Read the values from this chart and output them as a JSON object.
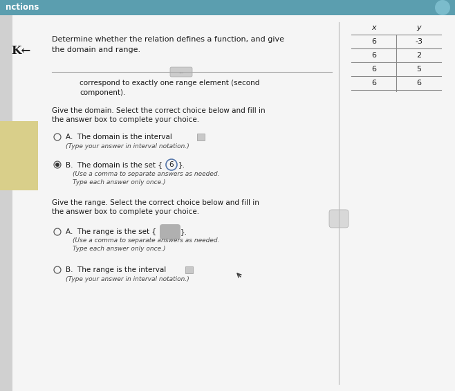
{
  "title_bar_color": "#5b9eaf",
  "bg_color": "#e8e8e8",
  "main_bg": "#f5f5f5",
  "header_text_1": "Determine whether the relation defines a function, and give",
  "header_text_2": "the domain and range.",
  "arrow_symbol": "K←",
  "table": {
    "headers": [
      "x",
      "y"
    ],
    "rows": [
      [
        6,
        "-3"
      ],
      [
        6,
        "2"
      ],
      [
        6,
        "5"
      ],
      [
        6,
        "6"
      ]
    ]
  },
  "body_text_1": "correspond to exactly one range element (second",
  "body_text_2": "component).",
  "domain_prompt_1": "Give the domain. Select the correct choice below and fill in",
  "domain_prompt_2": "the answer box to complete your choice.",
  "range_prompt_1": "Give the range. Select the correct choice below and fill in",
  "range_prompt_2": "the answer box to complete your choice.",
  "sidebar_color": "#d9cf8a",
  "text_color": "#1a1a1a",
  "small_text_color": "#444444",
  "divider_color": "#aaaaaa",
  "table_line_color": "#888888",
  "radio_color": "#555555",
  "box_fill": "#c8c8c8",
  "box_edge": "#999999",
  "blob_fill": "#b0b0b0",
  "circle_val_color": "#5577aa",
  "title_bar_height": 22,
  "font_size_title": 8.5,
  "font_size_header": 8,
  "font_size_body": 7.5,
  "font_size_small": 6.5,
  "font_size_table": 8,
  "font_size_arrow": 12
}
